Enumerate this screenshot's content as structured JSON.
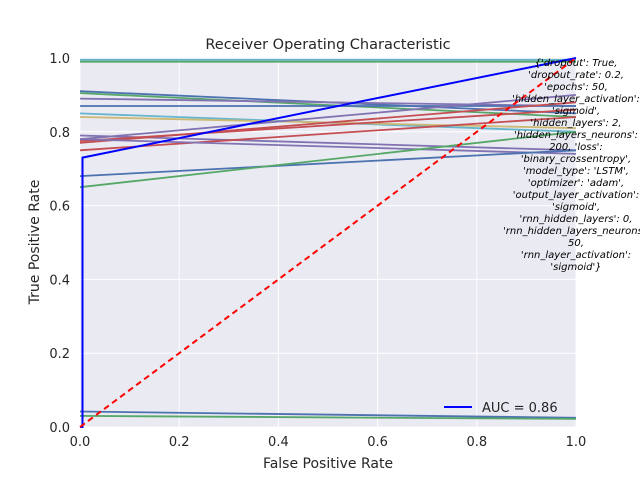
{
  "chart_data": {
    "type": "line",
    "title": "Receiver Operating Characteristic",
    "xlabel": "False Positive Rate",
    "ylabel": "True Positive Rate",
    "xlim": [
      0,
      1
    ],
    "ylim": [
      0,
      1
    ],
    "xticks": [
      "0.0",
      "0.2",
      "0.4",
      "0.6",
      "0.8",
      "1.0"
    ],
    "yticks": [
      "0.0",
      "0.2",
      "0.4",
      "0.6",
      "0.8",
      "1.0"
    ],
    "grid": true,
    "legend": {
      "position": "lower-right",
      "entries": [
        "AUC = 0.86"
      ]
    },
    "series": [
      {
        "x": [
          0,
          1
        ],
        "y": [
          0.995,
          0.995
        ],
        "color": "#64b5cd"
      },
      {
        "x": [
          0,
          1
        ],
        "y": [
          0.99,
          0.99
        ],
        "color": "#55a868"
      },
      {
        "x": [
          0,
          1
        ],
        "y": [
          0.91,
          0.85
        ],
        "color": "#4c72b0"
      },
      {
        "x": [
          0,
          1
        ],
        "y": [
          0.905,
          0.84
        ],
        "color": "#55a868"
      },
      {
        "x": [
          0,
          1
        ],
        "y": [
          0.89,
          0.87
        ],
        "color": "#8172b2"
      },
      {
        "x": [
          0,
          1
        ],
        "y": [
          0.87,
          0.87
        ],
        "color": "#4c72b0"
      },
      {
        "x": [
          0,
          1
        ],
        "y": [
          0.85,
          0.8
        ],
        "color": "#64b5cd"
      },
      {
        "x": [
          0,
          1
        ],
        "y": [
          0.84,
          0.81
        ],
        "color": "#ccb974"
      },
      {
        "x": [
          0,
          1
        ],
        "y": [
          0.79,
          0.75
        ],
        "color": "#8172b2"
      },
      {
        "x": [
          0,
          1
        ],
        "y": [
          0.78,
          0.9
        ],
        "color": "#8172b2"
      },
      {
        "x": [
          0,
          1
        ],
        "y": [
          0.775,
          0.86
        ],
        "color": "#c44e52"
      },
      {
        "x": [
          0,
          1
        ],
        "y": [
          0.77,
          0.88
        ],
        "color": "#c44e52"
      },
      {
        "x": [
          0,
          1
        ],
        "y": [
          0.75,
          0.84
        ],
        "color": "#c44e52"
      },
      {
        "x": [
          0,
          1
        ],
        "y": [
          0.78,
          0.74
        ],
        "color": "#8172b2"
      },
      {
        "x": [
          0,
          1
        ],
        "y": [
          0.68,
          0.75
        ],
        "color": "#4c72b0"
      },
      {
        "x": [
          0,
          1
        ],
        "y": [
          0.65,
          0.8
        ],
        "color": "#55a868"
      },
      {
        "x": [
          0,
          1
        ],
        "y": [
          0.042,
          0.025
        ],
        "color": "#4c72b0"
      },
      {
        "x": [
          0,
          1
        ],
        "y": [
          0.03,
          0.022
        ],
        "color": "#55a868"
      },
      {
        "x": [
          0,
          0.005,
          0.005,
          1
        ],
        "y": [
          0,
          0.0,
          0.73,
          1.0
        ],
        "color": "#0000ff",
        "name": "AUC = 0.86"
      },
      {
        "x": [
          0,
          1
        ],
        "y": [
          0,
          1
        ],
        "color": "#ff0000",
        "dashed": true
      }
    ],
    "annotation_lines": [
      "{'dropout': True,",
      "'dropout_rate': 0.2,",
      "'epochs': 50,",
      "'hidden_layer_activation':",
      "'sigmoid',",
      "'hidden_layers': 2,",
      "'hidden_layers_neurons':",
      "200, 'loss':",
      "'binary_crossentropy',",
      "'model_type': 'LSTM',",
      "'optimizer': 'adam',",
      "'output_layer_activation':",
      "'sigmoid',",
      "'rnn_hidden_layers': 0,",
      "'rnn_hidden_layers_neurons':",
      "50,",
      "'rnn_layer_activation':",
      "'sigmoid'}"
    ]
  },
  "colors": {
    "plot_background": "#eaeaf2",
    "grid": "#ffffff",
    "legend_line": "#0000ff"
  }
}
